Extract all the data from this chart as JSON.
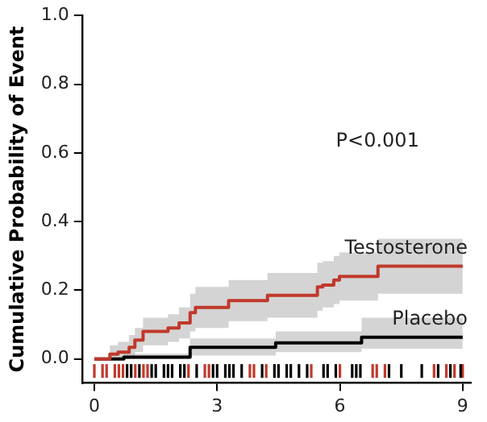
{
  "chart_data": {
    "type": "step",
    "ylabel": "Cumulative Probability of Event",
    "xlim": [
      -0.3,
      9.2
    ],
    "xticks": [
      0,
      3,
      6,
      9
    ],
    "ylim": [
      -0.07,
      1.0
    ],
    "yticks": [
      {
        "value": 0,
        "label": "0.0"
      },
      {
        "value": 0.2,
        "label": "0.2"
      },
      {
        "value": 0.4,
        "label": "0.4"
      },
      {
        "value": 0.6,
        "label": "0.6"
      },
      {
        "value": 0.8,
        "label": "0.8"
      },
      {
        "value": 1,
        "label": "1.0"
      }
    ],
    "grid": false,
    "legend": false,
    "annotations": [
      "P<0.001"
    ],
    "series": [
      {
        "name": "Testosterone",
        "color": "#c0392b",
        "x": [
          0,
          0.38,
          0.58,
          0.85,
          0.99,
          1.19,
          1.8,
          2.07,
          2.34,
          2.47,
          3.28,
          4.23,
          5.45,
          5.58,
          5.85,
          5.99,
          6.93,
          9
        ],
        "values": [
          0,
          0.014,
          0.02,
          0.034,
          0.055,
          0.08,
          0.09,
          0.105,
          0.135,
          0.15,
          0.17,
          0.185,
          0.21,
          0.215,
          0.23,
          0.24,
          0.27,
          0.27
        ],
        "lower": [
          0,
          0,
          0,
          0.005,
          0.02,
          0.04,
          0.05,
          0.06,
          0.08,
          0.09,
          0.11,
          0.12,
          0.14,
          0.15,
          0.16,
          0.17,
          0.19,
          0.19
        ],
        "upper": [
          0,
          0.04,
          0.05,
          0.07,
          0.09,
          0.12,
          0.13,
          0.15,
          0.19,
          0.21,
          0.23,
          0.25,
          0.28,
          0.285,
          0.3,
          0.31,
          0.35,
          0.35
        ]
      },
      {
        "name": "Placebo",
        "color": "#000000",
        "x": [
          0,
          0.72,
          2.34,
          4.43,
          6.53,
          9
        ],
        "values": [
          0,
          0.005,
          0.034,
          0.047,
          0.063,
          0.063
        ],
        "lower": [
          0,
          0,
          0.01,
          0.02,
          0.03,
          0.03
        ],
        "upper": [
          0,
          0.015,
          0.06,
          0.08,
          0.12,
          0.12
        ]
      },
      {
        "type": "bar",
        "color": "#c0392b",
        "x": [
          0,
          0.2,
          0.3,
          0.5,
          0.6,
          0.7,
          1.0,
          1.2,
          1.3,
          2.3,
          2.7,
          2.8,
          3.8,
          3.9,
          4.2,
          5.3,
          6.0,
          6.8,
          6.9,
          7.1,
          8.3,
          8.6,
          8.8,
          9.0
        ],
        "base": [
          -0.055,
          -0.055,
          -0.055,
          -0.055,
          -0.055,
          -0.055,
          -0.055,
          -0.055,
          -0.055,
          -0.055,
          -0.055,
          -0.055,
          -0.055,
          -0.055,
          -0.055,
          -0.055,
          -0.055,
          -0.055,
          -0.055,
          -0.055,
          -0.055,
          -0.055,
          -0.055,
          -0.055
        ],
        "values": [
          0.04,
          0.04,
          0.04,
          0.04,
          0.04,
          0.04,
          0.04,
          0.04,
          0.04,
          0.04,
          0.04,
          0.04,
          0.04,
          0.04,
          0.04,
          0.04,
          0.04,
          0.04,
          0.04,
          0.04,
          0.04,
          0.04,
          0.04,
          0.04
        ]
      },
      {
        "type": "bar",
        "color": "#000000",
        "x": [
          0.8,
          0.9,
          1.1,
          1.4,
          1.5,
          1.7,
          1.8,
          1.9,
          2.1,
          2.2,
          2.5,
          2.9,
          3.0,
          3.2,
          3.3,
          3.4,
          3.6,
          4.1,
          4.4,
          4.5,
          4.7,
          4.8,
          5.0,
          5.2,
          5.6,
          5.7,
          5.9,
          6.3,
          6.4,
          6.5,
          7.2,
          7.5,
          8.0,
          8.4,
          8.7,
          8.95
        ],
        "base": [
          -0.055,
          -0.055,
          -0.055,
          -0.055,
          -0.055,
          -0.055,
          -0.055,
          -0.055,
          -0.055,
          -0.055,
          -0.055,
          -0.055,
          -0.055,
          -0.055,
          -0.055,
          -0.055,
          -0.055,
          -0.055,
          -0.055,
          -0.055,
          -0.055,
          -0.055,
          -0.055,
          -0.055,
          -0.055,
          -0.055,
          -0.055,
          -0.055,
          -0.055,
          -0.055,
          -0.055,
          -0.055,
          -0.055,
          -0.055,
          -0.055,
          -0.055
        ],
        "values": [
          0.04,
          0.04,
          0.04,
          0.04,
          0.04,
          0.04,
          0.04,
          0.04,
          0.04,
          0.04,
          0.04,
          0.04,
          0.04,
          0.04,
          0.04,
          0.04,
          0.04,
          0.04,
          0.04,
          0.04,
          0.04,
          0.04,
          0.04,
          0.04,
          0.04,
          0.04,
          0.04,
          0.04,
          0.04,
          0.04,
          0.04,
          0.04,
          0.04,
          0.04,
          0.04,
          0.04
        ]
      }
    ]
  }
}
